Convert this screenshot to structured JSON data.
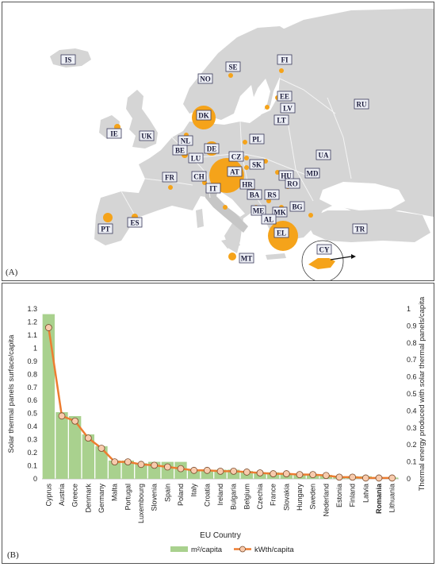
{
  "panel_a": {
    "label": "(A)",
    "colors": {
      "sea": "#ffffff",
      "land": "#d5d5d5",
      "border": "#f4f4f4",
      "bubble": "#f5a31a",
      "label_fill": "#eef0f6",
      "label_stroke": "#3a3a5a"
    },
    "country_labels": [
      "IS",
      "SE",
      "FI",
      "NO",
      "RU",
      "EE",
      "LV",
      "DK",
      "LT",
      "IE",
      "UK",
      "NL",
      "PL",
      "BE",
      "DE",
      "UA",
      "LU",
      "CZ",
      "SK",
      "FR",
      "AT",
      "MD",
      "CH",
      "HU",
      "IT",
      "HR",
      "RO",
      "BA",
      "RS",
      "BG",
      "ME",
      "MK",
      "AL",
      "PT",
      "ES",
      "EL",
      "TR",
      "MT",
      "CY"
    ]
  },
  "panel_b": {
    "label": "(B)"
  },
  "chart_data": {
    "type": "bar",
    "categories": [
      "Cyprus",
      "Austria",
      "Greece",
      "Denmark",
      "Germany",
      "Malta",
      "Portugal",
      "Luxembourg",
      "Slovenia",
      "Spain",
      "Poland",
      "Italy",
      "Croatia",
      "Ireland",
      "Bulgaria",
      "Belgium",
      "Czechia",
      "France",
      "Slovakia",
      "Hungary",
      "Sweden",
      "Nederland",
      "Estonia",
      "Finland",
      "Latvia",
      "Romania",
      "Lithuania"
    ],
    "highlight_category": "Romania",
    "series": [
      {
        "name": "m²/capita",
        "kind": "bar",
        "axis": "left",
        "color": "#a9d18e",
        "values": [
          1.26,
          0.51,
          0.48,
          0.34,
          0.25,
          0.14,
          0.14,
          0.12,
          0.13,
          0.13,
          0.13,
          0.07,
          0.07,
          0.07,
          0.07,
          0.06,
          0.05,
          0.05,
          0.04,
          0.04,
          0.03,
          0.03,
          0.02,
          0.02,
          0.02,
          0.01,
          0.01
        ]
      },
      {
        "name": "kWth/capita",
        "kind": "line",
        "axis": "right",
        "color": "#ed7d31",
        "marker_fill": "#f8cbad",
        "values": [
          0.89,
          0.37,
          0.34,
          0.24,
          0.18,
          0.1,
          0.1,
          0.085,
          0.08,
          0.07,
          0.06,
          0.05,
          0.05,
          0.045,
          0.045,
          0.04,
          0.035,
          0.03,
          0.03,
          0.025,
          0.025,
          0.02,
          0.01,
          0.01,
          0.005,
          0.005,
          0.005
        ]
      }
    ],
    "xlabel": "EU Country",
    "ylabel": "Solar thermal panels surface/capita",
    "y2label": "Thermal energy produced with solar thermal panels/capita",
    "ylim": [
      0,
      1.3
    ],
    "y2lim": [
      0,
      1
    ],
    "yticks": [
      "0",
      "0.1",
      "0.2",
      "0.3",
      "0.4",
      "0.5",
      "0.6",
      "0.7",
      "0.8",
      "0.9",
      "1",
      "1.1",
      "1.2",
      "1.3"
    ],
    "y2ticks": [
      "0",
      "0.1",
      "0.2",
      "0.3",
      "0.4",
      "0.5",
      "0.6",
      "0.7",
      "0.8",
      "0.9",
      "1"
    ],
    "legend_position": "bottom",
    "grid": false
  }
}
